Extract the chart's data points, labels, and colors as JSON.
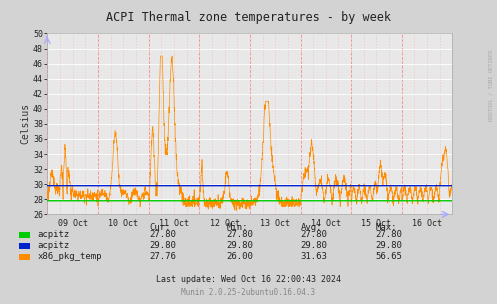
{
  "title": "ACPI Thermal zone temperatures - by week",
  "ylabel": "Celsius",
  "right_label": "RRDTOOL / TOBI OETIKER",
  "bg_color": "#d3d3d3",
  "plot_bg_color": "#e8e8e8",
  "ylim": [
    26,
    50
  ],
  "yticks": [
    26,
    28,
    30,
    32,
    34,
    36,
    38,
    40,
    42,
    44,
    46,
    48,
    50
  ],
  "xlabels": [
    "09 Oct",
    "10 Oct",
    "11 Oct",
    "12 Oct",
    "13 Oct",
    "14 Oct",
    "15 Oct",
    "16 Oct"
  ],
  "n_points": 2016,
  "flat_green_val": 27.8,
  "flat_blue_val": 29.8,
  "orange_color": "#ff8c00",
  "green_color": "#00cc00",
  "blue_color": "#0022cc",
  "legend": [
    {
      "label": "acpitz",
      "color": "#00cc00"
    },
    {
      "label": "acpitz",
      "color": "#0022cc"
    },
    {
      "label": "x86_pkg_temp",
      "color": "#ff8c00"
    }
  ],
  "legend_headers": [
    "Cur:",
    "Min:",
    "Avg:",
    "Max:"
  ],
  "legend_values": [
    [
      "27.80",
      "27.80",
      "27.80",
      "27.80"
    ],
    [
      "29.80",
      "29.80",
      "29.80",
      "29.80"
    ],
    [
      "27.76",
      "26.00",
      "31.63",
      "56.65"
    ]
  ],
  "footer": "Last update: Wed Oct 16 22:00:43 2024",
  "munin_version": "Munin 2.0.25-2ubuntu0.16.04.3"
}
